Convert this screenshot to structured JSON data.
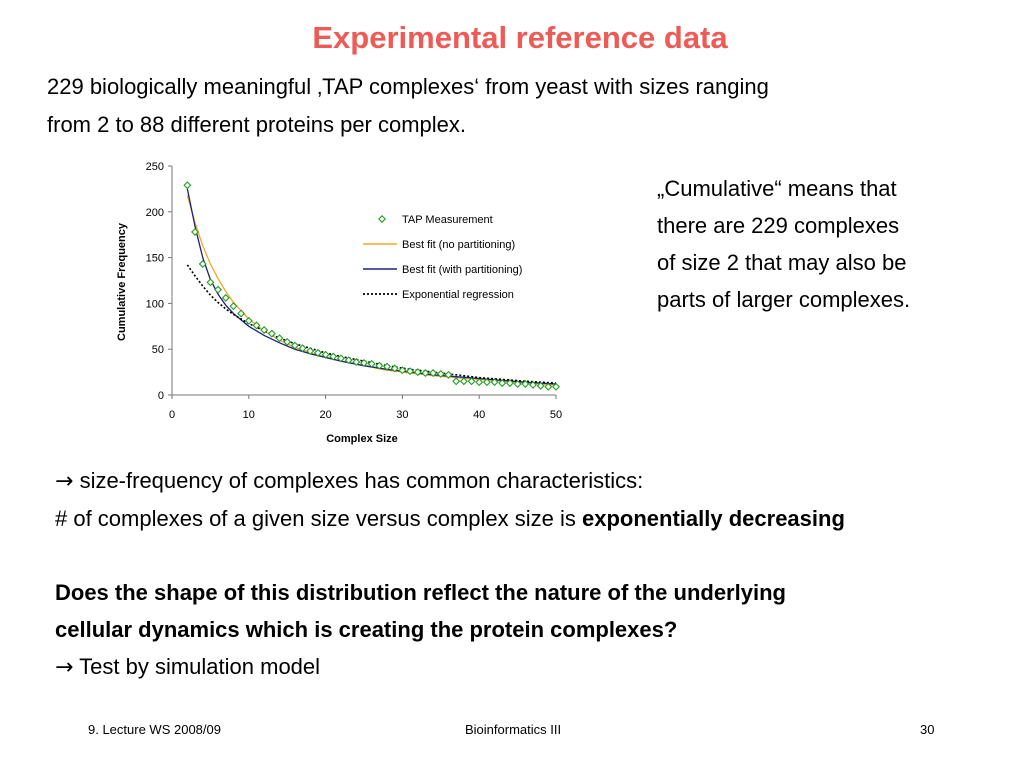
{
  "slide": {
    "title": "Experimental reference data",
    "intro_line1": "229 biologically meaningful ‚TAP complexes‘ from yeast with sizes ranging",
    "intro_line2": "from 2 to 88 different proteins per complex.",
    "note_lines": [
      "„Cumulative“ means that",
      "there are 229 complexes",
      "of size 2 that may also be",
      "parts of larger complexes."
    ],
    "arrow_symbol": "→",
    "point1": "size-frequency of complexes has common characteristics:",
    "point2_prefix": "# of complexes of a given size versus complex size is ",
    "point2_bold": "exponentially decreasing",
    "question_line1": "Does the shape of this distribution reflect the nature of the underlying",
    "question_line2": "cellular dynamics which is creating the protein complexes?",
    "test_line": "Test by simulation model"
  },
  "footer": {
    "left": "9. Lecture WS 2008/09",
    "center": "Bioinformatics III",
    "right": "30"
  },
  "chart_data": {
    "type": "scatter",
    "xlabel": "Complex Size",
    "ylabel": "Cumulative Frequency",
    "xlim": [
      0,
      50
    ],
    "ylim": [
      0,
      250
    ],
    "xticks": [
      "0",
      "10",
      "20",
      "30",
      "40",
      "50"
    ],
    "yticks": [
      "0",
      "50",
      "100",
      "150",
      "200",
      "250"
    ],
    "legend_position": "top-right",
    "grid": false,
    "series": [
      {
        "name": "TAP Measurement",
        "kind": "markers",
        "marker": "diamond",
        "color": "#1f9e1f",
        "x": [
          2,
          3,
          4,
          5,
          6,
          7,
          8,
          9,
          10,
          11,
          12,
          13,
          14,
          15,
          16,
          17,
          18,
          19,
          20,
          21,
          22,
          23,
          24,
          25,
          26,
          27,
          28,
          29,
          30,
          31,
          32,
          33,
          34,
          35,
          36,
          37,
          38,
          39,
          40,
          41,
          42,
          43,
          44,
          45,
          46,
          47,
          48,
          49,
          50
        ],
        "y": [
          229,
          178,
          143,
          123,
          115,
          106,
          97,
          89,
          81,
          76,
          71,
          67,
          62,
          58,
          54,
          51,
          48,
          46,
          44,
          42,
          40,
          38,
          36,
          35,
          34,
          32,
          31,
          29,
          27,
          26,
          25,
          24,
          24,
          23,
          22,
          15,
          15,
          15,
          14,
          14,
          14,
          13,
          13,
          12,
          12,
          11,
          10,
          9,
          9
        ]
      },
      {
        "name": "Best fit (no partitioning)",
        "kind": "line",
        "color": "#f5a623",
        "x": [
          2,
          3,
          4,
          5,
          6,
          7,
          8,
          10,
          12,
          14,
          16,
          18,
          20,
          22,
          25,
          28,
          31,
          34,
          37,
          40,
          43,
          46,
          50
        ],
        "y": [
          218,
          188,
          163,
          143,
          127,
          113,
          101,
          83,
          70,
          60,
          52,
          46,
          41,
          37,
          32,
          27,
          24,
          21,
          19,
          17,
          15,
          13,
          11
        ]
      },
      {
        "name": "Best fit (with partitioning)",
        "kind": "line",
        "color": "#1a237e",
        "x": [
          2,
          3,
          4,
          5,
          6,
          7,
          8,
          10,
          12,
          14,
          16,
          18,
          20,
          22,
          25,
          28,
          31,
          34,
          37,
          40,
          43,
          46,
          50
        ],
        "y": [
          225,
          184,
          150,
          126,
          110,
          98,
          89,
          75,
          65,
          57,
          50,
          45,
          41,
          37,
          32,
          28,
          25,
          22,
          20,
          18,
          16,
          14,
          12
        ]
      },
      {
        "name": "Exponential regression",
        "kind": "dotted-line",
        "color": "#000000",
        "x": [
          2,
          3,
          4,
          5,
          6,
          7,
          8,
          10,
          12,
          14,
          16,
          18,
          20,
          22,
          25,
          28,
          31,
          34,
          37,
          40,
          43,
          46,
          50
        ],
        "y": [
          142,
          130,
          119,
          109,
          101,
          94,
          88,
          78,
          70,
          62,
          56,
          51,
          46,
          42,
          37,
          32,
          28,
          25,
          22,
          19,
          17,
          15,
          13
        ]
      }
    ]
  }
}
